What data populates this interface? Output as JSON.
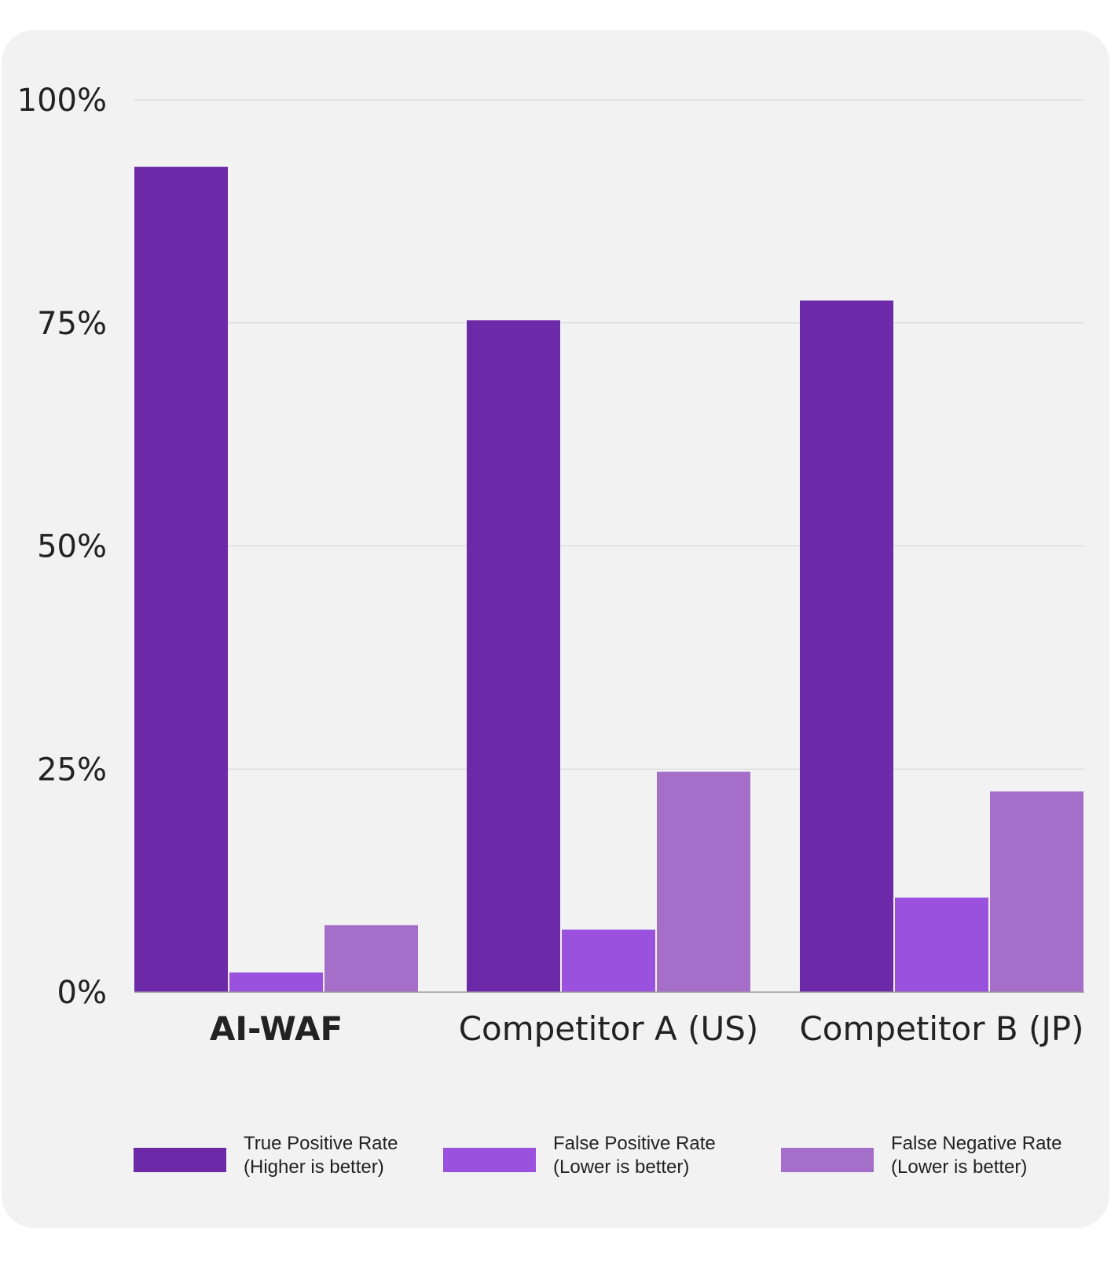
{
  "chart_data": {
    "type": "bar",
    "categories": [
      "AI-WAF",
      "Competitor A (US)",
      "Competitor B (JP)"
    ],
    "category_bold": [
      true,
      false,
      false
    ],
    "series": [
      {
        "name": "True Positive Rate",
        "note": "(Higher is better)",
        "color": "#6c29a8",
        "values": [
          92.5,
          75.3,
          77.5
        ]
      },
      {
        "name": "False Positive Rate",
        "note": "(Lower is better)",
        "color": "#9a52de",
        "values": [
          2.2,
          7.0,
          10.6
        ]
      },
      {
        "name": "False Negative Rate",
        "note": "(Lower is better)",
        "color": "#a56ec8",
        "values": [
          7.5,
          24.7,
          22.5
        ]
      }
    ],
    "ylim": [
      0,
      100
    ],
    "yticks": [
      "0%",
      "25%",
      "50%",
      "75%",
      "100%"
    ],
    "ytick_values": [
      0,
      25,
      50,
      75,
      100
    ],
    "grid": true,
    "legend_position": "bottom"
  }
}
